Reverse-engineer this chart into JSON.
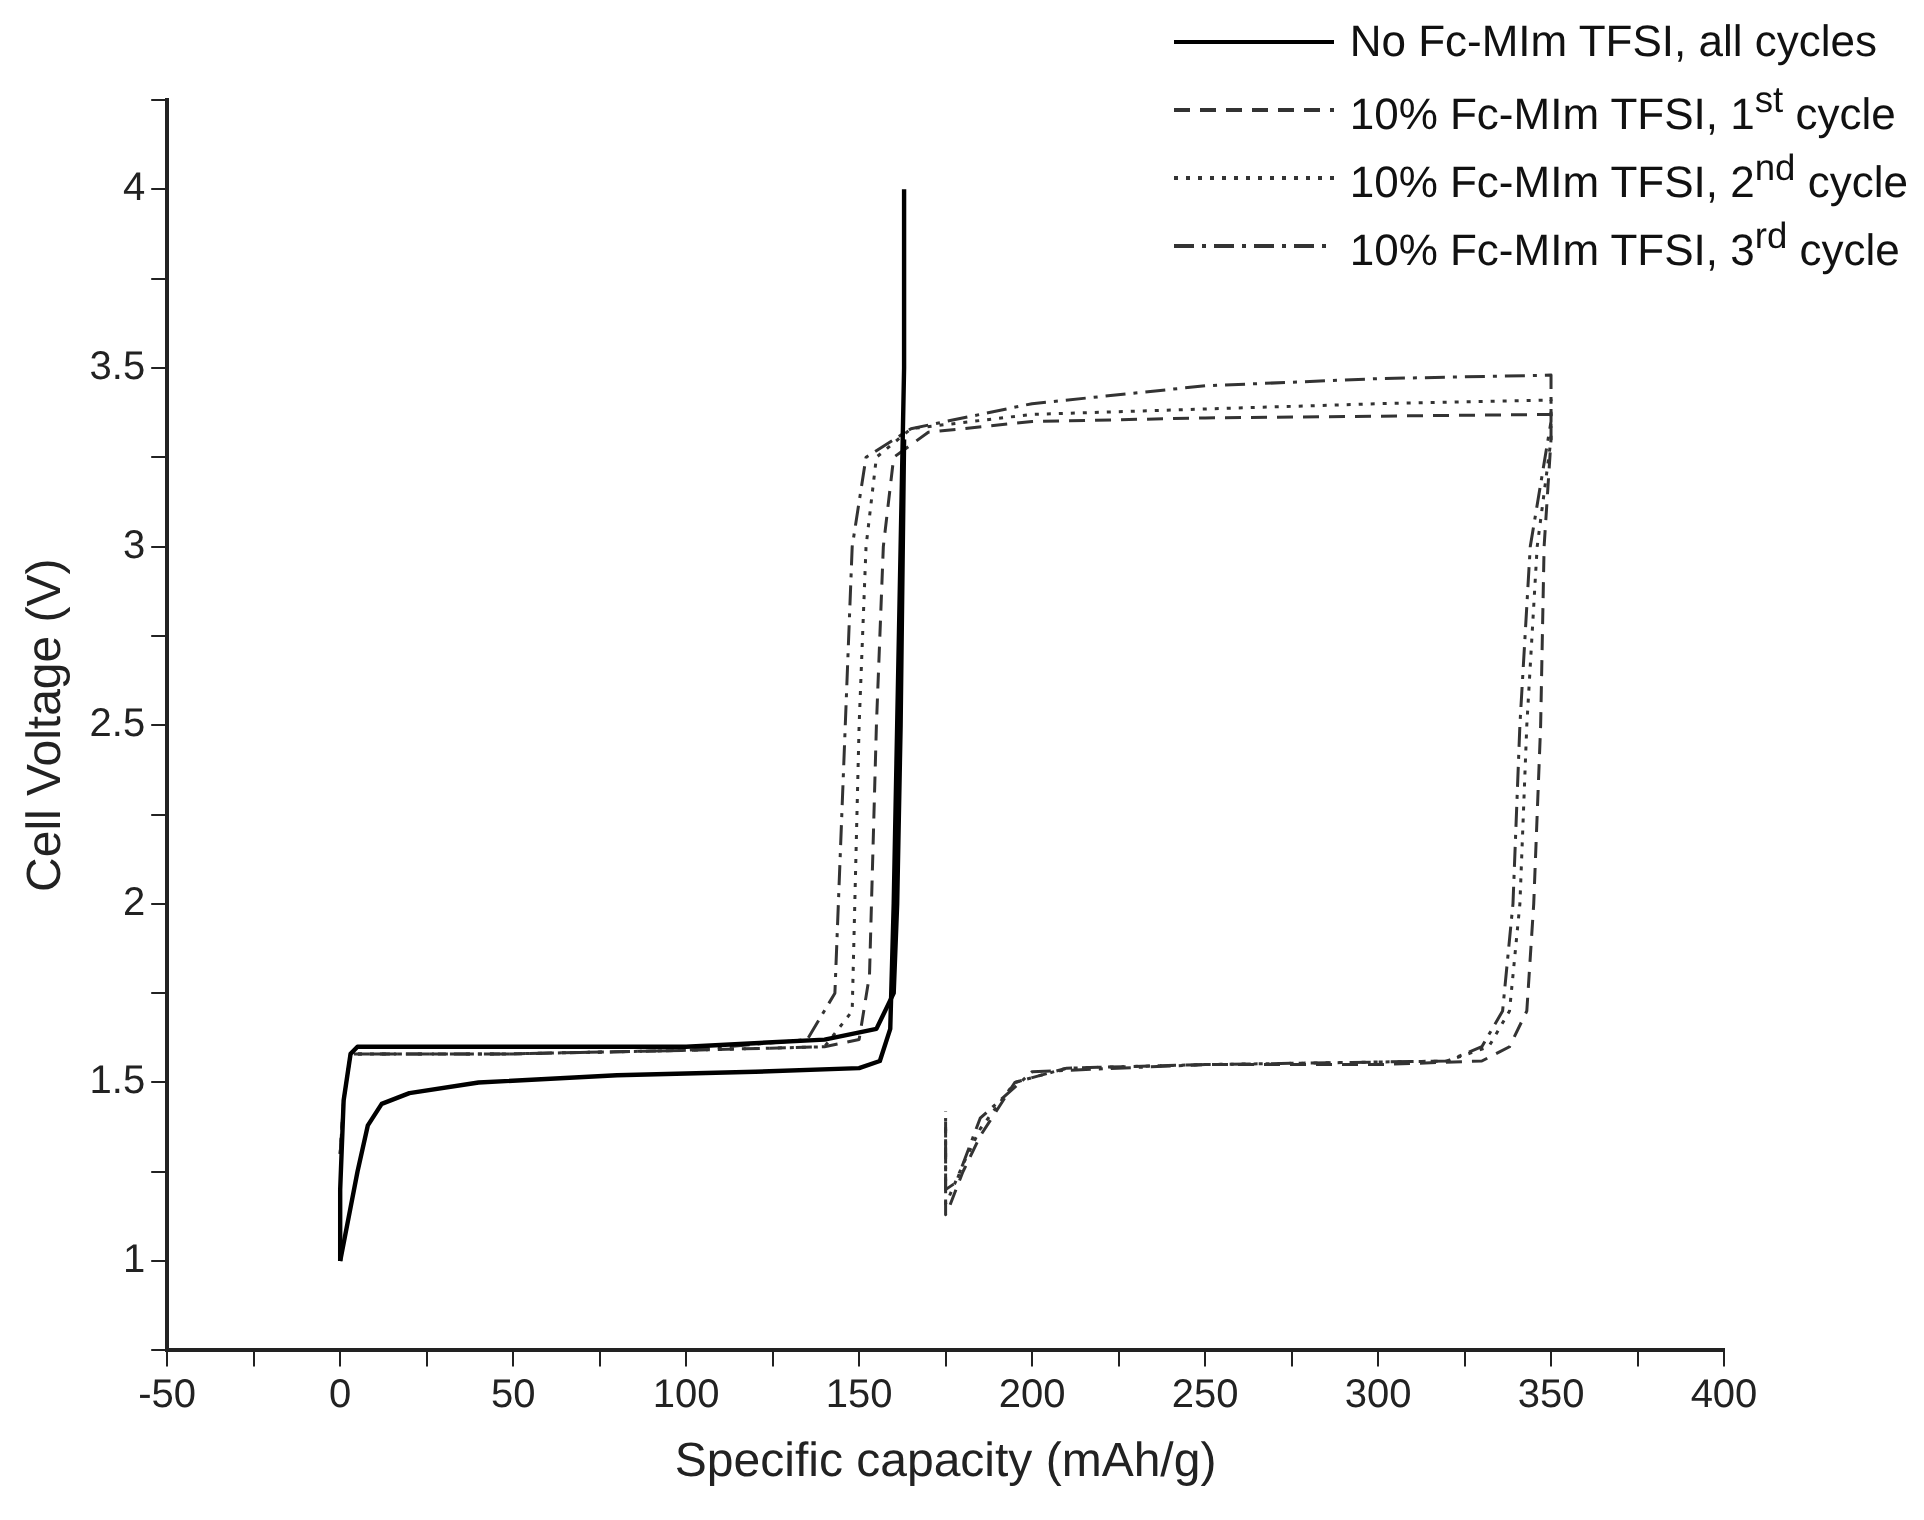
{
  "chart_data": {
    "type": "line",
    "xlabel": "Specific capacity (mAh/g)",
    "ylabel": "Cell Voltage (V)",
    "xlim": [
      -50,
      400
    ],
    "ylim": [
      0.75,
      4.25
    ],
    "xticks": [
      -50,
      {
        "value": -25,
        "label": null
      },
      0,
      {
        "value": 25,
        "label": null
      },
      50,
      {
        "value": 75,
        "label": null
      },
      100,
      {
        "value": 125,
        "label": null
      },
      150,
      {
        "value": 175,
        "label": null
      },
      200,
      {
        "value": 225,
        "label": null
      },
      250,
      {
        "value": 275,
        "label": null
      },
      300,
      {
        "value": 325,
        "label": null
      },
      350,
      {
        "value": 375,
        "label": null
      },
      400
    ],
    "yticks": [
      {
        "value": 0.75,
        "label": null
      },
      1.0,
      {
        "value": 1.25,
        "label": null
      },
      1.5,
      {
        "value": 1.75,
        "label": null
      },
      2.0,
      {
        "value": 2.25,
        "label": null
      },
      2.5,
      {
        "value": 2.75,
        "label": null
      },
      3.0,
      {
        "value": 3.25,
        "label": null
      },
      3.5,
      {
        "value": 3.75,
        "label": null
      },
      4.0,
      {
        "value": 4.25,
        "label": null
      }
    ],
    "legend": "top right",
    "grid": false,
    "marker": "none",
    "series": [
      {
        "name": "No Fc-MIm TFSI, all cycles",
        "color": "#000000",
        "line_style": "solid",
        "x": [
          0,
          2,
          5,
          8,
          12,
          20,
          40,
          80,
          120,
          150,
          156,
          159,
          160,
          161,
          162,
          163,
          163
        ],
        "values": [
          1.0,
          1.1,
          1.25,
          1.38,
          1.44,
          1.47,
          1.5,
          1.52,
          1.53,
          1.54,
          1.56,
          1.65,
          2.0,
          2.5,
          3.0,
          3.5,
          4.0
        ]
      },
      {
        "color": "#000000",
        "line_style": "solid",
        "x": [
          0,
          0,
          1,
          3,
          5,
          50,
          100,
          140,
          155,
          160,
          161,
          162,
          163
        ],
        "values": [
          1.0,
          1.2,
          1.45,
          1.58,
          1.6,
          1.6,
          1.6,
          1.62,
          1.65,
          1.75,
          2.0,
          2.5,
          3.3
        ]
      },
      {
        "name": "10% Fc-MIm TFSI, 1$^{st}$ cycle",
        "color": "#333333",
        "line_style": "dashed",
        "x": [
          0,
          1,
          3,
          50,
          100,
          140,
          150,
          153,
          155,
          157,
          160,
          170,
          200,
          250,
          350,
          350,
          348,
          347,
          345,
          343,
          338,
          330,
          300,
          250,
          210,
          195,
          185,
          180,
          176,
          175,
          175
        ],
        "values": [
          1.3,
          1.45,
          1.58,
          1.58,
          1.59,
          1.6,
          1.62,
          1.8,
          2.5,
          3.0,
          3.25,
          3.32,
          3.35,
          3.36,
          3.37,
          3.3,
          3.0,
          2.5,
          2.0,
          1.7,
          1.6,
          1.56,
          1.55,
          1.55,
          1.54,
          1.5,
          1.35,
          1.25,
          1.15,
          1.13,
          1.42
        ]
      },
      {
        "name": "10% Fc-MIm TFSI, 2$^{nd}$ cycle",
        "color": "#333333",
        "line_style": "dotted",
        "x": [
          0,
          1,
          3,
          50,
          100,
          140,
          148,
          150,
          152,
          155,
          165,
          200,
          300,
          350,
          350,
          346,
          343,
          341,
          338,
          332,
          320,
          250,
          210,
          195,
          185,
          180,
          176,
          175,
          175
        ],
        "values": [
          1.3,
          1.45,
          1.58,
          1.58,
          1.59,
          1.6,
          1.7,
          2.5,
          3.0,
          3.25,
          3.33,
          3.37,
          3.4,
          3.41,
          3.3,
          3.0,
          2.5,
          2.0,
          1.7,
          1.6,
          1.56,
          1.55,
          1.54,
          1.5,
          1.37,
          1.27,
          1.18,
          1.16,
          1.4
        ]
      },
      {
        "name": "10% Fc-MIm TFSI, 3$^{rd}$ cycle",
        "color": "#333333",
        "line_style": "dashdot",
        "x": [
          0,
          1,
          3,
          50,
          100,
          135,
          143,
          146,
          148,
          152,
          165,
          200,
          250,
          300,
          350,
          350,
          344,
          341,
          339,
          336,
          330,
          320,
          250,
          200,
          185,
          178,
          175,
          175
        ],
        "values": [
          1.3,
          1.45,
          1.58,
          1.58,
          1.59,
          1.62,
          1.75,
          2.5,
          3.0,
          3.25,
          3.33,
          3.4,
          3.45,
          3.47,
          3.48,
          3.35,
          3.0,
          2.5,
          2.0,
          1.7,
          1.6,
          1.56,
          1.55,
          1.53,
          1.4,
          1.22,
          1.2,
          1.4
        ]
      }
    ]
  }
}
